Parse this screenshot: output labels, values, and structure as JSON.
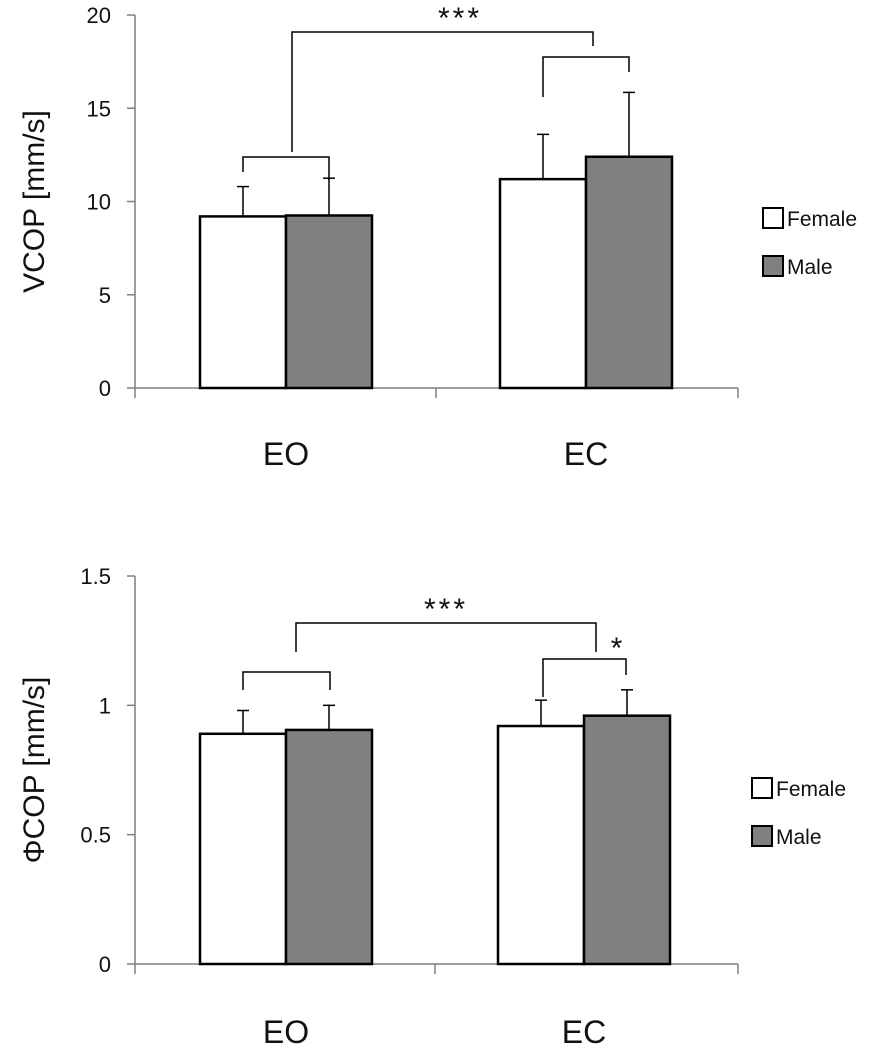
{
  "chart_data": [
    {
      "type": "bar",
      "panel": "top",
      "ylabel": "VCOP [mm/s]",
      "xlabel": "",
      "ylim": [
        0,
        20
      ],
      "yticks": [
        0,
        5,
        10,
        15,
        20
      ],
      "ytick_labels": [
        "0",
        "5",
        "10",
        "15",
        "20"
      ],
      "categories": [
        "EO",
        "EC"
      ],
      "series": [
        {
          "name": "Female",
          "values": [
            9.2,
            11.2
          ],
          "errors": [
            1.6,
            2.4
          ],
          "color": "#ffffff"
        },
        {
          "name": "Male",
          "values": [
            9.25,
            12.4
          ],
          "errors": [
            2.0,
            3.45
          ],
          "color": "#808080"
        }
      ],
      "legend": {
        "position": "right",
        "entries": [
          "Female",
          "Male"
        ]
      },
      "grid": false,
      "annotations": [
        {
          "type": "bracket",
          "between": [
            "EO",
            "EC"
          ],
          "label": "***"
        },
        {
          "type": "bracket",
          "within": "EO",
          "label": ""
        },
        {
          "type": "bracket",
          "within": "EC",
          "label": ""
        }
      ]
    },
    {
      "type": "bar",
      "panel": "bottom",
      "ylabel": "ΦCOP [mm/s]",
      "xlabel": "",
      "ylim": [
        0,
        1.5
      ],
      "yticks": [
        0,
        0.5,
        1,
        1.5
      ],
      "ytick_labels": [
        "0",
        "0.5",
        "1",
        "1.5"
      ],
      "categories": [
        "EO",
        "EC"
      ],
      "series": [
        {
          "name": "Female",
          "values": [
            0.89,
            0.92
          ],
          "errors": [
            0.09,
            0.1
          ],
          "color": "#ffffff"
        },
        {
          "name": "Male",
          "values": [
            0.905,
            0.96
          ],
          "errors": [
            0.095,
            0.1
          ],
          "color": "#808080"
        }
      ],
      "legend": {
        "position": "right",
        "entries": [
          "Female",
          "Male"
        ]
      },
      "grid": false,
      "annotations": [
        {
          "type": "bracket",
          "between": [
            "EO",
            "EC"
          ],
          "label": "***"
        },
        {
          "type": "bracket",
          "within": "EO",
          "label": ""
        },
        {
          "type": "bracket",
          "within": "EC",
          "label": "*"
        }
      ]
    }
  ]
}
